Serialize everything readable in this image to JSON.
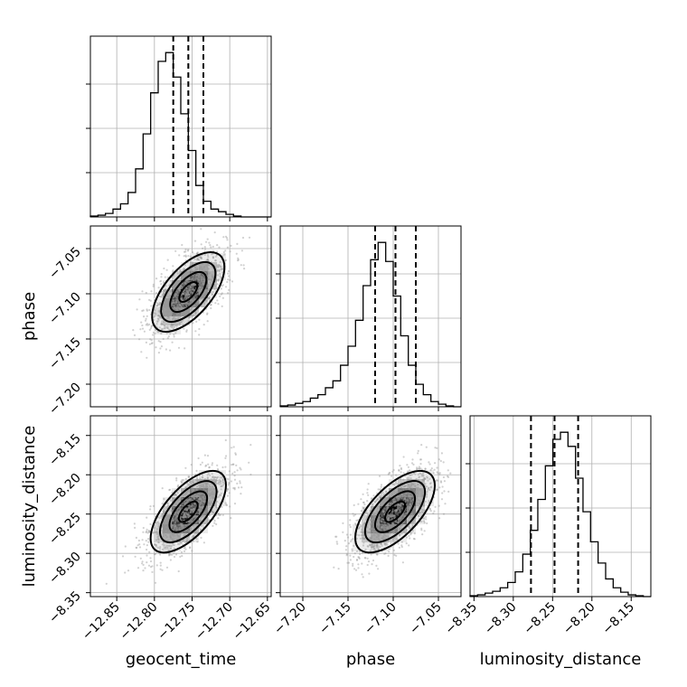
{
  "chart_data": {
    "type": "corner",
    "parameters": [
      "geocent_time",
      "phase",
      "luminosity_distance"
    ],
    "axes": {
      "geocent_time": {
        "label": "geocent_time",
        "range": [
          -12.885,
          -12.645
        ],
        "ticks": [
          -12.85,
          -12.8,
          -12.75,
          -12.7,
          -12.65
        ],
        "tick_labels": [
          "−12.85",
          "−12.80",
          "−12.75",
          "−12.70",
          "−12.65"
        ],
        "quantiles": [
          -12.775,
          -12.755,
          -12.735
        ],
        "hist_bins": [
          -12.885,
          -12.875,
          -12.865,
          -12.855,
          -12.845,
          -12.835,
          -12.825,
          -12.815,
          -12.805,
          -12.795,
          -12.785,
          -12.775,
          -12.765,
          -12.755,
          -12.745,
          -12.735,
          -12.725,
          -12.715,
          -12.705,
          -12.695,
          -12.685,
          -12.675,
          -12.665,
          -12.655,
          -12.645
        ],
        "hist_counts": [
          1,
          2,
          4,
          9,
          15,
          28,
          55,
          95,
          142,
          178,
          188,
          160,
          118,
          76,
          36,
          18,
          9,
          6,
          3,
          1,
          0,
          0,
          0,
          0
        ]
      },
      "phase": {
        "label": "phase",
        "range": [
          -7.225,
          -7.025
        ],
        "ticks": [
          -7.2,
          -7.15,
          -7.1,
          -7.05
        ],
        "tick_labels": [
          "−7.20",
          "−7.15",
          "−7.10",
          "−7.05"
        ],
        "quantiles": [
          -7.12,
          -7.0975,
          -7.075
        ],
        "hist_bins": [
          -7.225,
          -7.2167,
          -7.2083,
          -7.2,
          -7.1917,
          -7.1833,
          -7.175,
          -7.1667,
          -7.1583,
          -7.15,
          -7.1417,
          -7.1333,
          -7.125,
          -7.1167,
          -7.1083,
          -7.1,
          -7.0917,
          -7.0833,
          -7.075,
          -7.0667,
          -7.0583,
          -7.05,
          -7.0417,
          -7.0333,
          -7.025
        ],
        "hist_counts": [
          1,
          2,
          4,
          6,
          10,
          14,
          22,
          30,
          48,
          70,
          100,
          140,
          170,
          190,
          168,
          128,
          82,
          48,
          26,
          14,
          6,
          3,
          1,
          0
        ]
      },
      "luminosity_distance": {
        "label": "luminosity_distance",
        "range": [
          -8.355,
          -8.125
        ],
        "ticks": [
          -8.35,
          -8.3,
          -8.25,
          -8.2,
          -8.15
        ],
        "tick_labels": [
          "−8.35",
          "−8.30",
          "−8.25",
          "−8.20",
          "−8.15"
        ],
        "quantiles": [
          -8.2775,
          -8.2475,
          -8.2175
        ],
        "hist_bins": [
          -8.355,
          -8.3454,
          -8.3358,
          -8.3263,
          -8.3167,
          -8.3071,
          -8.2975,
          -8.2879,
          -8.2783,
          -8.2688,
          -8.2592,
          -8.2496,
          -8.24,
          -8.2304,
          -8.2208,
          -8.2113,
          -8.2017,
          -8.1921,
          -8.1825,
          -8.1729,
          -8.1633,
          -8.1538,
          -8.1442,
          -8.1346,
          -8.125
        ],
        "hist_counts": [
          1,
          2,
          4,
          6,
          10,
          16,
          28,
          48,
          75,
          110,
          148,
          178,
          186,
          170,
          134,
          96,
          62,
          38,
          20,
          10,
          5,
          2,
          1,
          0
        ]
      }
    },
    "pairs": [
      {
        "x": "geocent_time",
        "y": "phase",
        "mean": [
          -12.755,
          -7.098
        ],
        "sd": [
          0.024,
          0.022
        ],
        "rho": 0.62,
        "density_peak": [
          -12.755,
          -7.088
        ]
      },
      {
        "x": "geocent_time",
        "y": "luminosity_distance",
        "mean": [
          -12.755,
          -8.247
        ],
        "sd": [
          0.025,
          0.026
        ],
        "rho": 0.65,
        "density_peak": [
          -12.755,
          -8.245
        ]
      },
      {
        "x": "phase",
        "y": "luminosity_distance",
        "mean": [
          -7.098,
          -8.247
        ],
        "sd": [
          0.022,
          0.026
        ],
        "rho": 0.64,
        "density_peak": [
          -7.098,
          -8.25
        ]
      }
    ],
    "grid": true,
    "legend": "none"
  }
}
